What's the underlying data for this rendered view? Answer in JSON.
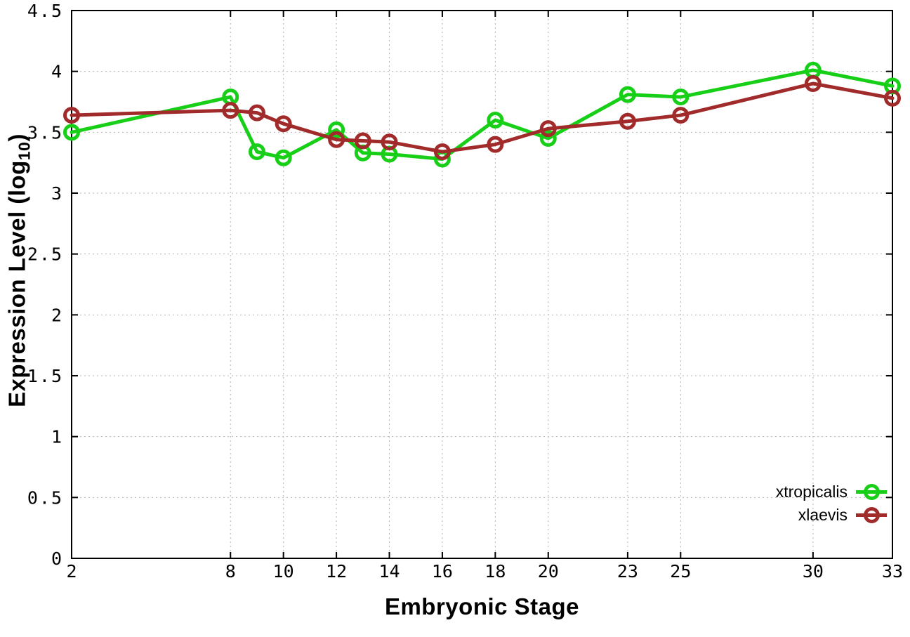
{
  "page": {
    "background_color": "#ffffff"
  },
  "chart_data": {
    "type": "line",
    "title": "",
    "xlabel": "Embryonic Stage",
    "ylabel": "Expression Level (log10)",
    "ylabel_parts": {
      "main": "Expression Level (log",
      "sub": "10",
      "suffix": ")"
    },
    "xlim": [
      2,
      33
    ],
    "ylim": [
      0,
      4.5
    ],
    "x": [
      2,
      8,
      9,
      10,
      12,
      13,
      14,
      16,
      18,
      20,
      23,
      25,
      30,
      33
    ],
    "xticks": [
      2,
      8,
      10,
      12,
      14,
      16,
      18,
      20,
      23,
      25,
      30,
      33
    ],
    "xtick_labels": [
      "2",
      "8",
      "10",
      "12",
      "14",
      "16",
      "18",
      "20",
      "23",
      "25",
      "30",
      "33"
    ],
    "yticks": [
      0,
      0.5,
      1,
      1.5,
      2,
      2.5,
      3,
      3.5,
      4,
      4.5
    ],
    "ytick_labels": [
      "0",
      "0.5",
      "1",
      "1.5",
      "2",
      "2.5",
      "3",
      "3.5",
      "4",
      "4.5"
    ],
    "grid": {
      "shown": true,
      "style": "dotted",
      "color": "#b5b5b5"
    },
    "axes": {
      "border_color": "#000000",
      "tick_label_color": "#000000",
      "mirror_ticks": true
    },
    "series": [
      {
        "name": "xtropicalis",
        "color": "#18cf18",
        "marker": "open-circle",
        "values": [
          3.5,
          3.79,
          3.34,
          3.29,
          3.52,
          3.33,
          3.32,
          3.28,
          3.6,
          3.45,
          3.81,
          3.79,
          4.01,
          3.88
        ]
      },
      {
        "name": "xlaevis",
        "color": "#a12a2a",
        "marker": "open-circle",
        "values": [
          3.64,
          3.68,
          3.66,
          3.57,
          3.44,
          3.43,
          3.42,
          3.34,
          3.4,
          3.53,
          3.59,
          3.64,
          3.9,
          3.78
        ]
      }
    ],
    "legend": {
      "position": "bottom-right",
      "entries": [
        "xtropicalis",
        "xlaevis"
      ]
    }
  }
}
